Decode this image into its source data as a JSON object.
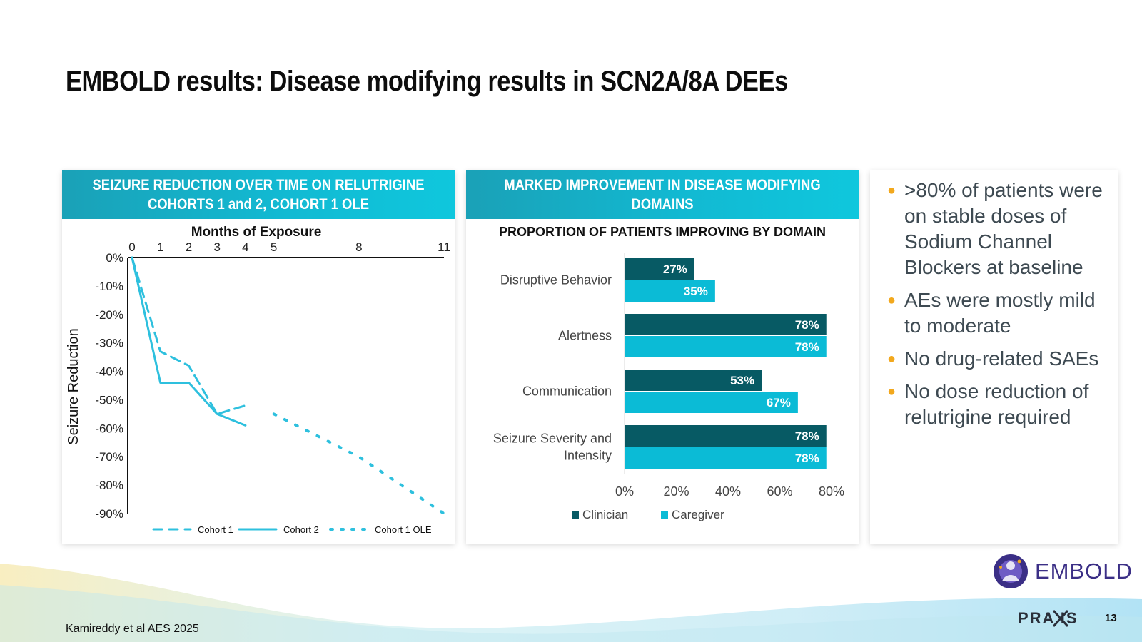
{
  "slide": {
    "title": "EMBOLD results: Disease modifying results in SCN2A/8A DEEs",
    "footnote": "Kamireddy et al AES 2025",
    "page_number": "13",
    "embold_logo_text": "EMBOLD",
    "praxis_logo_text": "PRA  IS"
  },
  "left_panel": {
    "header_line1": "SEIZURE REDUCTION OVER TIME ON RELUTRIGINE",
    "header_line2": "COHORTS 1 and 2, COHORT 1 OLE"
  },
  "mid_panel": {
    "header_line1": "MARKED IMPROVEMENT IN DISEASE MODIFYING",
    "header_line2": "DOMAINS"
  },
  "bullets": [
    ">80% of patients were on stable doses of Sodium Channel Blockers at baseline",
    "AEs were mostly mild to moderate",
    "No drug-related SAEs",
    "No dose reduction of relutrigine required"
  ],
  "colors": {
    "accent_teal": "#12b9d2",
    "cohort_line": "#2ec0de",
    "clinician": "#075a64",
    "caregiver": "#0bbbd6",
    "bullet_dot": "#f2a81d"
  },
  "chart_data": [
    {
      "type": "line",
      "xlabel": "Months of Exposure",
      "ylabel": "Seizure Reduction",
      "x_ticks": [
        0,
        1,
        2,
        3,
        4,
        5,
        8,
        11
      ],
      "y_ticks": [
        "0%",
        "-10%",
        "-20%",
        "-30%",
        "-40%",
        "-50%",
        "-60%",
        "-70%",
        "-80%",
        "-90%"
      ],
      "xlim": [
        0,
        11
      ],
      "ylim": [
        -90,
        0
      ],
      "x_axis_position": "top",
      "legend_position": "bottom",
      "series": [
        {
          "name": "Cohort 1",
          "style": "dashed",
          "x": [
            0,
            1,
            2,
            3,
            4
          ],
          "y": [
            0,
            -33,
            -38,
            -55,
            -52
          ]
        },
        {
          "name": "Cohort 2",
          "style": "solid",
          "x": [
            0,
            1,
            2,
            3,
            4
          ],
          "y": [
            0,
            -44,
            -44,
            -55,
            -59
          ]
        },
        {
          "name": "Cohort 1 OLE",
          "style": "dotted",
          "x": [
            5,
            8,
            11
          ],
          "y": [
            -55,
            -70,
            -90
          ]
        }
      ]
    },
    {
      "type": "bar",
      "orientation": "horizontal",
      "title": "PROPORTION OF PATIENTS IMPROVING BY DOMAIN",
      "categories": [
        "Disruptive Behavior",
        "Alertness",
        "Communication",
        "Seizure Severity and Intensity"
      ],
      "series": [
        {
          "name": "Clinician",
          "values": [
            27,
            78,
            53,
            78
          ],
          "labels": [
            "27%",
            "78%",
            "53%",
            "78%"
          ]
        },
        {
          "name": "Caregiver",
          "values": [
            35,
            78,
            67,
            78
          ],
          "labels": [
            "35%",
            "78%",
            "67%",
            "78%"
          ]
        }
      ],
      "x_ticks": [
        "0%",
        "20%",
        "40%",
        "60%",
        "80%"
      ],
      "xlim": [
        0,
        80
      ],
      "legend_position": "bottom"
    }
  ]
}
